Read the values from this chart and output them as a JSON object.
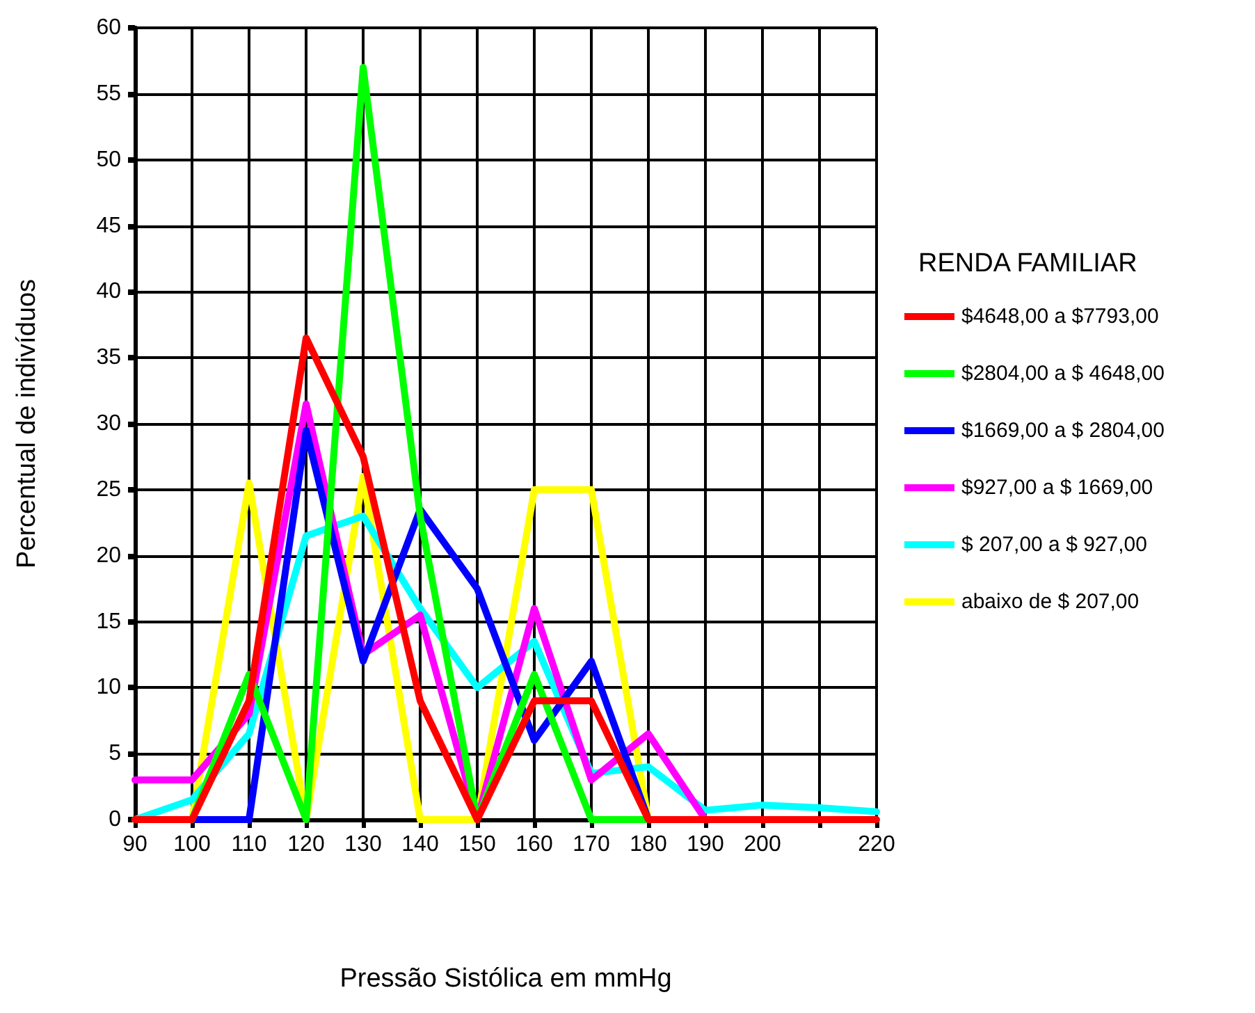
{
  "chart_data": {
    "type": "line",
    "xlabel": "Pressão Sistólica em mmHg",
    "ylabel": "Percentual de indivíduos",
    "legend_title": "RENDA FAMILIAR",
    "x": [
      90,
      100,
      110,
      120,
      130,
      140,
      150,
      160,
      170,
      180,
      190,
      200,
      210,
      220
    ],
    "series": [
      {
        "name": "$4648,00 a $7793,00",
        "color": "#ff0000",
        "values": [
          0,
          0,
          9,
          36.5,
          27.5,
          9,
          0,
          9,
          9,
          0,
          0,
          0,
          0,
          0
        ]
      },
      {
        "name": "$2804,00 a $ 4648,00",
        "color": "#00ff00",
        "values": [
          0,
          0,
          11,
          0,
          57,
          23,
          0,
          11,
          0,
          0,
          null,
          null,
          null,
          null
        ]
      },
      {
        "name": "$1669,00 a $ 2804,00",
        "color": "#0000ff",
        "values": [
          0,
          0,
          0,
          29.5,
          12,
          23.5,
          17.5,
          6,
          12,
          0,
          null,
          null,
          null,
          null
        ]
      },
      {
        "name": "$927,00 a $ 1669,00",
        "color": "#ff00ff",
        "values": [
          3,
          3,
          8,
          31.5,
          12.5,
          15.5,
          0,
          16,
          3,
          6.5,
          0,
          null,
          null,
          null
        ]
      },
      {
        "name": "$ 207,00 a $ 927,00",
        "color": "#00ffff",
        "values": [
          0,
          1.5,
          6.5,
          21.5,
          23,
          16,
          10,
          13.5,
          3.5,
          4,
          0.7,
          1.1,
          0.9,
          0.6
        ]
      },
      {
        "name": "abaixo de $ 207,00",
        "color": "#ffff00",
        "values": [
          0,
          0,
          25.5,
          0,
          26,
          0,
          0,
          25,
          25,
          0,
          null,
          null,
          null,
          null
        ]
      }
    ],
    "xlim": [
      90,
      220
    ],
    "xticks": [
      90,
      100,
      110,
      120,
      130,
      140,
      150,
      160,
      170,
      180,
      190,
      200,
      {
        "value": 210,
        "label": null
      },
      220
    ],
    "ylim": [
      0,
      60
    ],
    "yticks": [
      0,
      5,
      10,
      15,
      20,
      25,
      30,
      35,
      40,
      45,
      50,
      55,
      60
    ],
    "grid": true,
    "legend": "right",
    "marker": "none",
    "line_style": "solid"
  }
}
